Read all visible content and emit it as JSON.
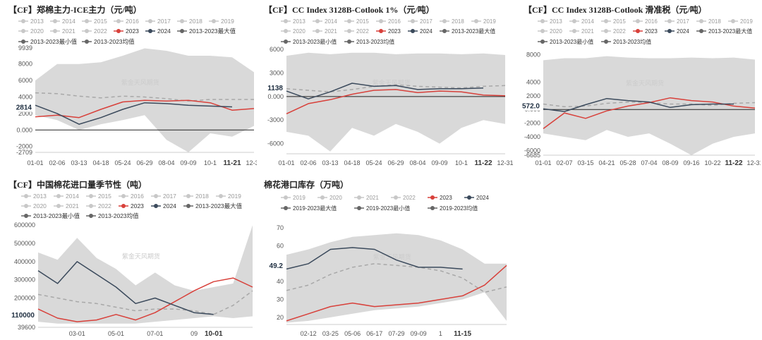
{
  "colors": {
    "y2023": "#d8403a",
    "y2024": "#3b4a5c",
    "band": "#d9d9d9",
    "avg": "#a8a8a8",
    "legend_gray": "#c8c8c8",
    "legend_dark": "#666666",
    "zero": "#222222"
  },
  "chart_data": [
    {
      "type": "area",
      "id": "c1",
      "title": "【CF】郑棉主力-ICE主力（元/吨）",
      "legend": [
        "2013",
        "2014",
        "2015",
        "2016",
        "2017",
        "2018",
        "2019",
        "2020",
        "2021",
        "2022",
        "2023",
        "2024",
        "2013-2023最大值",
        "2013-2023最小值",
        "2013-2023均值"
      ],
      "legend_active": {
        "2023": "#d8403a",
        "2024": "#3b4a5c",
        "2013-2023最大值": "#666666",
        "2013-2023最小值": "#666666",
        "2013-2023均值": "#666666"
      },
      "watermark": "紫金天风期货",
      "yticks": [
        {
          "v": 9939,
          "t": "9939"
        },
        {
          "v": 8000,
          "t": "8000"
        },
        {
          "v": 6000,
          "t": "6000"
        },
        {
          "v": 4000,
          "t": "4000"
        },
        {
          "v": 2000,
          "t": "2000"
        },
        {
          "v": 0,
          "t": "0.000"
        },
        {
          "v": -2000,
          "t": "-2000"
        },
        {
          "v": -2709,
          "t": "-2709"
        }
      ],
      "ylim": [
        -2709,
        9939
      ],
      "xticks": [
        "01-01",
        "02-06",
        "03-13",
        "04-18",
        "05-24",
        "06-29",
        "08-04",
        "09-09",
        "10-1",
        "11-21",
        "12-31"
      ],
      "xtick_bold": "11-21",
      "current_label": "2814",
      "current_value": 2814,
      "x": [
        0,
        1,
        2,
        3,
        4,
        5,
        6,
        7,
        8,
        9,
        10
      ],
      "band_max": [
        6000,
        8000,
        8000,
        8200,
        9000,
        9900,
        9600,
        9000,
        9000,
        8800,
        7000
      ],
      "band_min": [
        1800,
        1200,
        0,
        700,
        1200,
        1800,
        -1200,
        -2700,
        -400,
        -800,
        500
      ],
      "series": [
        {
          "name": "2013-2023均值",
          "values": [
            4500,
            4400,
            4100,
            3900,
            4100,
            4000,
            3800,
            3500,
            3700,
            3700,
            3700
          ]
        },
        {
          "name": "2023",
          "values": [
            1600,
            1800,
            1500,
            2500,
            3400,
            3600,
            3500,
            3600,
            3300,
            2400,
            2600
          ]
        },
        {
          "name": "2024",
          "values": [
            3000,
            2000,
            700,
            1500,
            2500,
            3300,
            3200,
            3000,
            2900,
            2800,
            null
          ]
        }
      ]
    },
    {
      "type": "area",
      "id": "c2",
      "title": "【CF】CC Index 3128B-Cotlook 1%（元/吨）",
      "legend": [
        "2013",
        "2014",
        "2015",
        "2016",
        "2017",
        "2018",
        "2019",
        "2020",
        "2021",
        "2022",
        "2023",
        "2024",
        "2013-2023最大值",
        "2013-2023最小值",
        "2013-2023均值"
      ],
      "legend_active": {
        "2023": "#d8403a",
        "2024": "#3b4a5c",
        "2013-2023最大值": "#666666",
        "2013-2023最小值": "#666666",
        "2013-2023均值": "#666666"
      },
      "watermark": "紫金天风期货",
      "yticks": [
        {
          "v": 6000,
          "t": "6000"
        },
        {
          "v": 3000,
          "t": "3000"
        },
        {
          "v": 0,
          "t": "0.000"
        },
        {
          "v": -3000,
          "t": "-3000"
        },
        {
          "v": -6000,
          "t": "-6000"
        }
      ],
      "ylim": [
        -7300,
        6200
      ],
      "xticks": [
        "01-01",
        "02-06",
        "03-13",
        "04-18",
        "05-24",
        "06-29",
        "08-04",
        "09-09",
        "10-1",
        "11-22",
        "12-31"
      ],
      "xtick_bold": "11-22",
      "current_label": "1138",
      "current_value": 1138,
      "x": [
        0,
        1,
        2,
        3,
        4,
        5,
        6,
        7,
        8,
        9,
        10
      ],
      "band_max": [
        5200,
        5600,
        5400,
        5600,
        5600,
        5400,
        5500,
        5500,
        5400,
        5500,
        5300
      ],
      "band_min": [
        -4500,
        -5000,
        -7000,
        -4000,
        -5000,
        -3500,
        -4500,
        -6000,
        -4000,
        -3000,
        -3500
      ],
      "series": [
        {
          "name": "2013-2023均值",
          "values": [
            1000,
            800,
            600,
            900,
            1300,
            1500,
            1300,
            1200,
            1100,
            1300,
            1400
          ]
        },
        {
          "name": "2023",
          "values": [
            -2200,
            -900,
            -400,
            300,
            800,
            900,
            500,
            700,
            600,
            200,
            100
          ]
        },
        {
          "name": "2024",
          "values": [
            700,
            -300,
            600,
            1700,
            1300,
            1400,
            900,
            1000,
            1000,
            1100,
            null
          ]
        }
      ]
    },
    {
      "type": "area",
      "id": "c3",
      "title": "【CF】CC Index 3128B-Cotlook 滑准税（元/吨）",
      "legend": [
        "2013",
        "2014",
        "2015",
        "2016",
        "2017",
        "2018",
        "2019",
        "2020",
        "2021",
        "2022",
        "2023",
        "2024",
        "2013-2023最大值",
        "2013-2023最小值",
        "2013-2023均值"
      ],
      "legend_active": {
        "2023": "#d8403a",
        "2024": "#3b4a5c",
        "2013-2023最大值": "#666666",
        "2013-2023最小值": "#666666",
        "2013-2023均值": "#666666"
      },
      "watermark": "紫金天风期货",
      "yticks": [
        {
          "v": 8000,
          "t": "8000"
        },
        {
          "v": 4000,
          "t": "4000"
        },
        {
          "v": 2000,
          "t": "2000"
        },
        {
          "v": 0,
          "t": "0.000"
        },
        {
          "v": -2000,
          "t": "-2000"
        },
        {
          "v": -4000,
          "t": "-4000"
        },
        {
          "v": -6000,
          "t": "-6000"
        },
        {
          "v": -6685,
          "t": "-6685"
        }
      ],
      "ylim": [
        -6685,
        9000
      ],
      "xticks": [
        "01-01",
        "02-07",
        "03-15",
        "04-21",
        "05-28",
        "07-04",
        "08-09",
        "09-16",
        "10-22",
        "11-22",
        "12-31"
      ],
      "xtick_bold": "11-22",
      "current_label": "572.0",
      "current_value": 572,
      "x": [
        0,
        1,
        2,
        3,
        4,
        5,
        6,
        7,
        8,
        9,
        10
      ],
      "band_max": [
        7200,
        7500,
        7500,
        7800,
        7600,
        7500,
        7500,
        7600,
        7500,
        7600,
        7300
      ],
      "band_min": [
        -3500,
        -4000,
        -4500,
        -3000,
        -4000,
        -3500,
        -5000,
        -6685,
        -5000,
        -4000,
        -3500
      ],
      "series": [
        {
          "name": "2013-2023均值",
          "values": [
            800,
            400,
            500,
            900,
            1100,
            1000,
            800,
            800,
            600,
            900,
            1000
          ]
        },
        {
          "name": "2023",
          "values": [
            -2800,
            -500,
            -1300,
            -200,
            500,
            1000,
            1700,
            1300,
            1100,
            500,
            200
          ]
        },
        {
          "name": "2024",
          "values": [
            100,
            -300,
            700,
            1600,
            1300,
            1100,
            300,
            700,
            800,
            800,
            null
          ]
        }
      ]
    },
    {
      "type": "area",
      "id": "c4",
      "title": "【CF】中国棉花进口量季节性（吨）",
      "legend": [
        "2013",
        "2014",
        "2015",
        "2016",
        "2017",
        "2018",
        "2019",
        "2020",
        "2021",
        "2022",
        "2023",
        "2024",
        "2013-2023最大值",
        "2013-2023最小值",
        "2013-2023均值"
      ],
      "legend_active": {
        "2023": "#d8403a",
        "2024": "#3b4a5c",
        "2013-2023最大值": "#666666",
        "2013-2023最小值": "#666666",
        "2013-2023均值": "#666666"
      },
      "watermark": "紫金天风期货",
      "yticks": [
        {
          "v": 600000,
          "t": "600000"
        },
        {
          "v": 500000,
          "t": "500000"
        },
        {
          "v": 400000,
          "t": "400000"
        },
        {
          "v": 300000,
          "t": "300000"
        },
        {
          "v": 200000,
          "t": "200000"
        },
        {
          "v": 100000,
          "t": "100000"
        },
        {
          "v": 39600,
          "t": "39600"
        }
      ],
      "ylim": [
        39600,
        620000
      ],
      "xticks": [
        "03-01",
        "05-01",
        "07-01",
        "09",
        "10-01"
      ],
      "xtick_pos": [
        2,
        4,
        6,
        8,
        9
      ],
      "xtick_bold": "10-01",
      "current_label": "110000",
      "current_value": 110000,
      "x": [
        0,
        1,
        2,
        3,
        4,
        5,
        6,
        7,
        8,
        9,
        10,
        11
      ],
      "band_max": [
        450000,
        410000,
        530000,
        420000,
        360000,
        270000,
        340000,
        270000,
        240000,
        260000,
        280000,
        600000
      ],
      "band_min": [
        70000,
        60000,
        60000,
        60000,
        60000,
        60000,
        70000,
        80000,
        90000,
        100000,
        90000,
        100000
      ],
      "series": [
        {
          "name": "2013-2023均值",
          "values": [
            220000,
            200000,
            180000,
            170000,
            150000,
            130000,
            140000,
            140000,
            130000,
            110000,
            160000,
            240000
          ]
        },
        {
          "name": "2023",
          "values": [
            140000,
            90000,
            70000,
            80000,
            110000,
            80000,
            120000,
            180000,
            240000,
            290000,
            310000,
            260000
          ]
        },
        {
          "name": "2024",
          "values": [
            350000,
            280000,
            400000,
            330000,
            260000,
            170000,
            200000,
            160000,
            120000,
            110000,
            null,
            null
          ]
        }
      ]
    },
    {
      "type": "area",
      "id": "c5",
      "title": "棉花港口库存（万吨）",
      "legend": [
        "2019",
        "2020",
        "2021",
        "2022",
        "2023",
        "2024",
        "2019-2023最大值",
        "2019-2023最小值",
        "2019-2023均值"
      ],
      "legend_active": {
        "2023": "#d8403a",
        "2024": "#3b4a5c",
        "2019-2023最大值": "#666666",
        "2019-2023最小值": "#666666",
        "2019-2023均值": "#666666"
      },
      "watermark": "紫金天风期货",
      "yticks": [
        {
          "v": 70,
          "t": "70"
        },
        {
          "v": 60,
          "t": "60"
        },
        {
          "v": 50,
          "t": "50"
        },
        {
          "v": 40,
          "t": "40"
        },
        {
          "v": 30,
          "t": "30"
        },
        {
          "v": 20,
          "t": "20"
        }
      ],
      "ylim": [
        16,
        72
      ],
      "xticks": [
        "02-12",
        "03-25",
        "05-06",
        "06-17",
        "07-29",
        "09-09",
        "1",
        "11-15"
      ],
      "xtick_pos": [
        1,
        2,
        3,
        4,
        5,
        6,
        7,
        8
      ],
      "xtick_bold": "11-15",
      "current_label": "49.2",
      "current_value": 49.2,
      "x": [
        0,
        1,
        2,
        3,
        4,
        5,
        6,
        7,
        8,
        9,
        10
      ],
      "band_max": [
        55,
        58,
        62,
        65,
        66,
        67,
        66,
        63,
        58,
        50,
        50
      ],
      "band_min": [
        17,
        18,
        20,
        22,
        24,
        25,
        26,
        28,
        30,
        34,
        18
      ],
      "series": [
        {
          "name": "2019-2023均值",
          "values": [
            35,
            38,
            44,
            48,
            50,
            49,
            48,
            46,
            42,
            34,
            37
          ]
        },
        {
          "name": "2023",
          "values": [
            18,
            22,
            26,
            28,
            26,
            27,
            28,
            30,
            32,
            38,
            49
          ]
        },
        {
          "name": "2024",
          "values": [
            47,
            50,
            58,
            59,
            58,
            52,
            48,
            48,
            47,
            null,
            null
          ]
        }
      ]
    }
  ]
}
